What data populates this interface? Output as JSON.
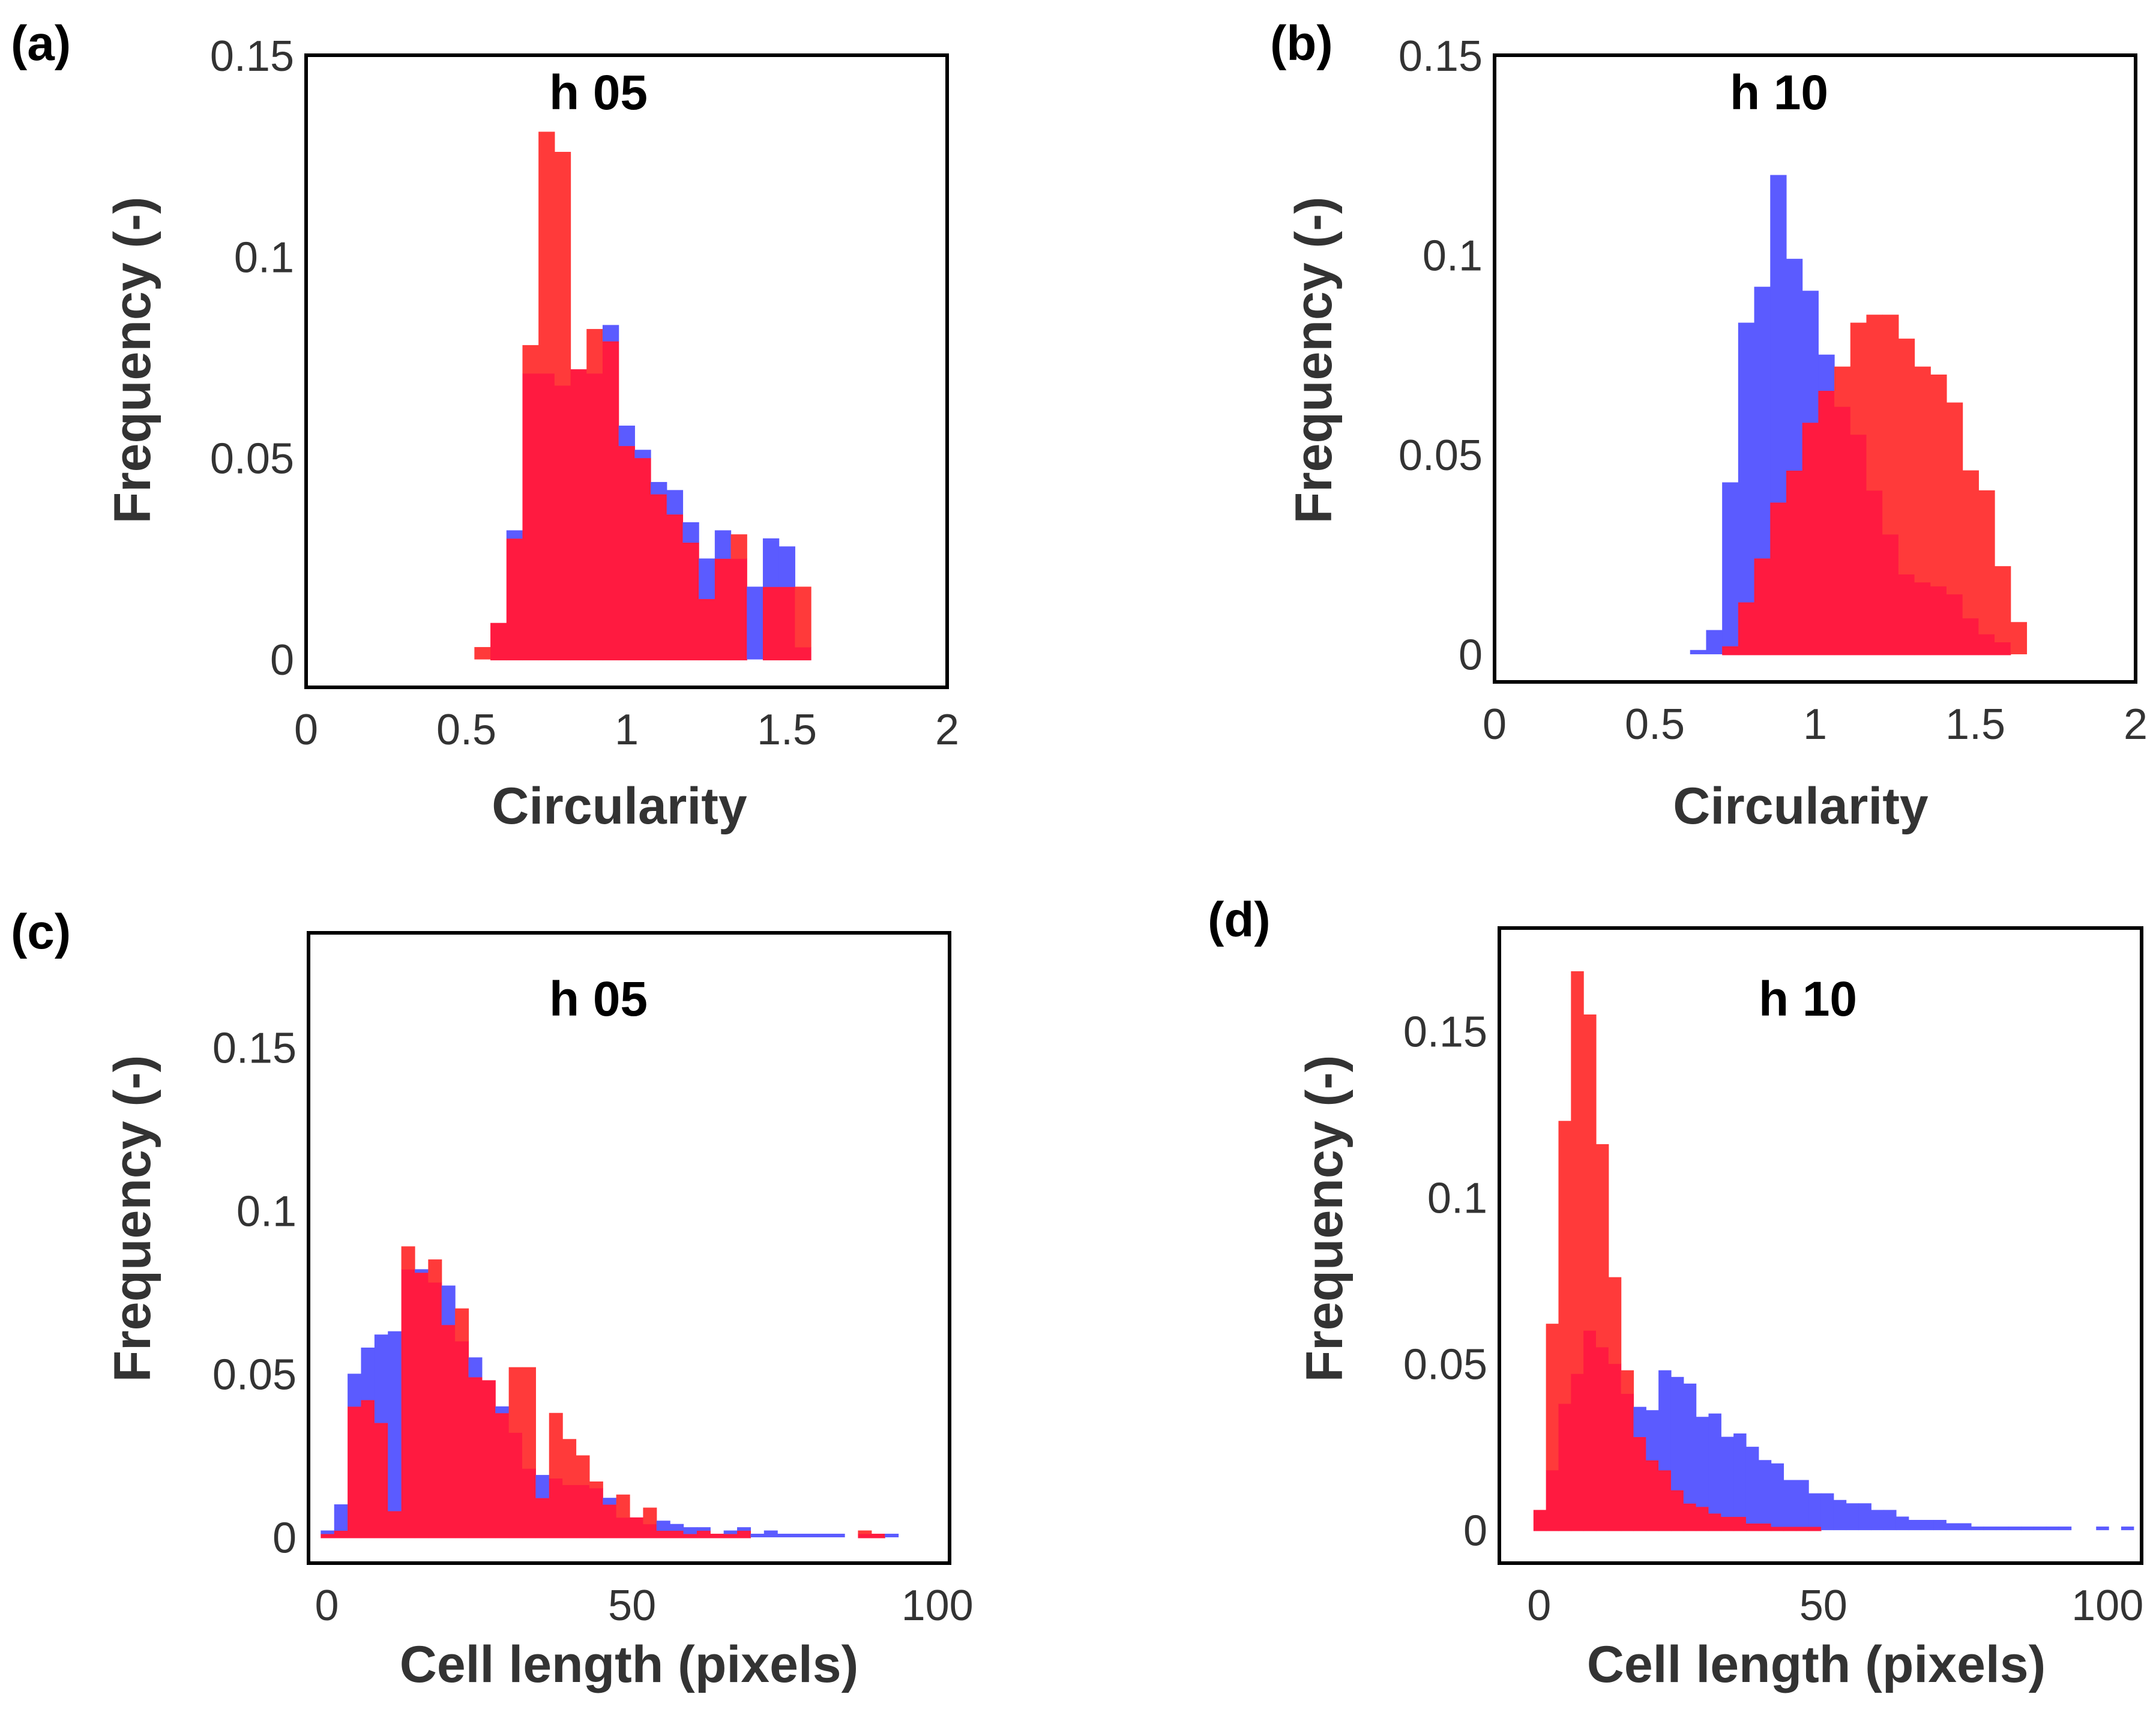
{
  "colors": {
    "blue": "#5b5bff",
    "red": "#ff3a3a",
    "overlap": "#ff1a40"
  },
  "chart_data": [
    {
      "panel": "(a)",
      "type": "bar",
      "title": "h 05",
      "xlabel": "Circularity",
      "ylabel": "Frequency (-)",
      "xlim": [
        0,
        2
      ],
      "ylim": [
        -0.007,
        0.15
      ],
      "xticks": [
        "0",
        "0.5",
        "1",
        "1.5",
        "2"
      ],
      "yticks": [
        "0",
        "0.05",
        "0.1",
        "0.15"
      ],
      "bin_start": 0.525,
      "bin_width": 0.05,
      "series": [
        {
          "name": "blue",
          "values": [
            0,
            0.009,
            0.032,
            0.071,
            0.071,
            0.068,
            0.072,
            0.071,
            0.083,
            0.058,
            0.052,
            0.044,
            0.042,
            0.034,
            0.025,
            0.032,
            0.025,
            0.018,
            0.03,
            0.028,
            0.003
          ]
        },
        {
          "name": "red",
          "values": [
            0.003,
            0.009,
            0.03,
            0.078,
            0.131,
            0.126,
            0.072,
            0.082,
            0.079,
            0.053,
            0.05,
            0.041,
            0.036,
            0.029,
            0.015,
            0.025,
            0.031,
            0.0,
            0.018,
            0.018,
            0.018
          ]
        }
      ]
    },
    {
      "panel": "(b)",
      "type": "bar",
      "title": "h 10",
      "xlabel": "Circularity",
      "ylabel": "Frequency (-)",
      "xlim": [
        0,
        2
      ],
      "ylim": [
        -0.007,
        0.15
      ],
      "xticks": [
        "0",
        "0.5",
        "1",
        "1.5",
        "2"
      ],
      "yticks": [
        "0",
        "0.05",
        "0.1",
        "0.15"
      ],
      "bin_start": 0.61,
      "bin_width": 0.05,
      "series": [
        {
          "name": "blue",
          "values": [
            0.001,
            0.006,
            0.043,
            0.083,
            0.092,
            0.12,
            0.099,
            0.091,
            0.075,
            0.062,
            0.055,
            0.041,
            0.03,
            0.02,
            0.018,
            0.017,
            0.015,
            0.009,
            0.005,
            0.003,
            0.0
          ]
        },
        {
          "name": "red",
          "values": [
            0,
            0,
            0.002,
            0.013,
            0.024,
            0.038,
            0.046,
            0.058,
            0.066,
            0.072,
            0.083,
            0.085,
            0.085,
            0.079,
            0.072,
            0.07,
            0.063,
            0.046,
            0.041,
            0.022,
            0.008
          ]
        }
      ]
    },
    {
      "panel": "(c)",
      "type": "bar",
      "title": "h 05",
      "xlabel": "Cell length (pixels)",
      "ylabel": "Frequency (-)",
      "xlim": [
        -3,
        102
      ],
      "ylim": [
        -0.008,
        0.185
      ],
      "xticks": [
        "0",
        "50",
        "100"
      ],
      "yticks": [
        "0",
        "0.05",
        "0.1",
        "0.15"
      ],
      "bin_start": -1,
      "bin_width": 2.2,
      "series": [
        {
          "name": "blue",
          "values": [
            0.002,
            0.01,
            0.05,
            0.058,
            0.062,
            0.063,
            0.082,
            0.082,
            0.078,
            0.077,
            0.06,
            0.055,
            0.048,
            0.04,
            0.032,
            0.021,
            0.019,
            0.018,
            0.016,
            0.016,
            0.015,
            0.012,
            0.006,
            0.006,
            0.004,
            0.005,
            0.004,
            0.003,
            0.003,
            0.001,
            0.002,
            0.003,
            0.001,
            0.002,
            0.001,
            0.001,
            0.001,
            0.001,
            0.001,
            0.0,
            0.001,
            0.001,
            0.001,
            0.0,
            0.0
          ]
        },
        {
          "name": "red",
          "values": [
            0.001,
            0.002,
            0.04,
            0.042,
            0.035,
            0.008,
            0.089,
            0.081,
            0.085,
            0.065,
            0.07,
            0.049,
            0.048,
            0.038,
            0.052,
            0.052,
            0.012,
            0.038,
            0.03,
            0.025,
            0.017,
            0.01,
            0.013,
            0.006,
            0.009,
            0.002,
            0.002,
            0.001,
            0.002,
            0.001,
            0.001,
            0.002,
            0.0,
            0.0,
            0.0,
            0.0,
            0.0,
            0.0,
            0.0,
            0.0,
            0.002,
            0.001,
            0.0,
            0.0,
            0.0
          ]
        }
      ]
    },
    {
      "panel": "(d)",
      "type": "bar",
      "title": "h 10",
      "xlabel": "Cell length (pixels)",
      "ylabel": "Frequency (-)",
      "xlim": [
        -7,
        106
      ],
      "ylim": [
        -0.01,
        0.181
      ],
      "xticks": [
        "0",
        "50",
        "100"
      ],
      "yticks": [
        "0",
        "0.05",
        "0.1",
        "0.15"
      ],
      "bin_start": -1,
      "bin_width": 2.2,
      "series": [
        {
          "name": "blue",
          "values": [
            0.006,
            0.018,
            0.038,
            0.047,
            0.06,
            0.055,
            0.05,
            0.041,
            0.037,
            0.036,
            0.048,
            0.046,
            0.044,
            0.034,
            0.035,
            0.028,
            0.029,
            0.025,
            0.021,
            0.02,
            0.015,
            0.015,
            0.011,
            0.011,
            0.009,
            0.008,
            0.008,
            0.006,
            0.006,
            0.004,
            0.003,
            0.003,
            0.003,
            0.002,
            0.002,
            0.001,
            0.001,
            0.001,
            0.001,
            0.001,
            0.001,
            0.001,
            0.001,
            0.0,
            0.0,
            0.001,
            0.0,
            0.001
          ]
        },
        {
          "name": "red",
          "values": [
            0.006,
            0.062,
            0.123,
            0.168,
            0.155,
            0.116,
            0.076,
            0.048,
            0.028,
            0.021,
            0.018,
            0.012,
            0.008,
            0.007,
            0.005,
            0.004,
            0.004,
            0.002,
            0.002,
            0.001,
            0.001,
            0.001,
            0.001,
            0.0,
            0.0,
            0.0,
            0.0,
            0.0,
            0.0,
            0.0,
            0.0,
            0.0,
            0.0,
            0.0,
            0.0,
            0.0,
            0.0,
            0.0,
            0.0,
            0.0,
            0.0,
            0.0,
            0.0,
            0.0,
            0.0,
            0.0,
            0.0,
            0.0
          ]
        }
      ]
    }
  ]
}
